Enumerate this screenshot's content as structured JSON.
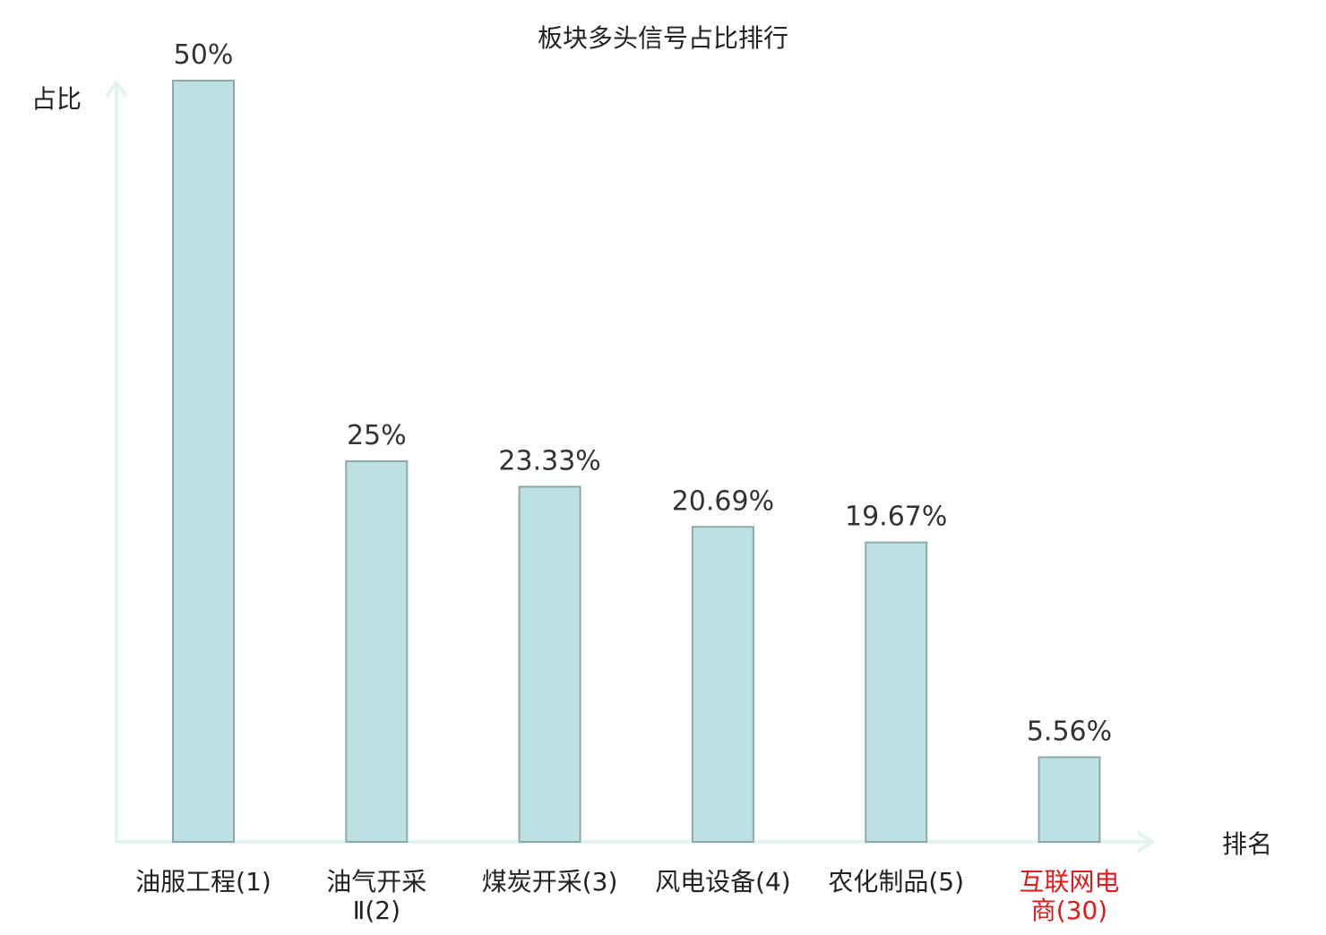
{
  "chart_data": {
    "type": "bar",
    "title": "板块多头信号占比排行",
    "ylabel": "占比",
    "xlabel": "排名",
    "categories": [
      {
        "line1": "油服工程(1)",
        "line2": ""
      },
      {
        "line1": "油气开采",
        "line2": "Ⅱ(2)"
      },
      {
        "line1": "煤炭开采(3)",
        "line2": ""
      },
      {
        "line1": "风电设备(4)",
        "line2": ""
      },
      {
        "line1": "农化制品(5)",
        "line2": ""
      },
      {
        "line1": "互联网电",
        "line2": "商(30)"
      }
    ],
    "values": [
      50,
      25,
      23.33,
      20.69,
      19.67,
      5.56
    ],
    "value_labels": [
      "50%",
      "25%",
      "23.33%",
      "20.69%",
      "19.67%",
      "5.56%"
    ],
    "highlight_index": 5,
    "ylim": [
      0,
      50
    ],
    "grid": false,
    "legend": "none",
    "colors": {
      "bar_fill": "#bde0e3",
      "bar_stroke": "#8fa9ab",
      "axis": "#e3f3f1",
      "text": "#333333",
      "highlight_text": "#e3191b"
    }
  }
}
